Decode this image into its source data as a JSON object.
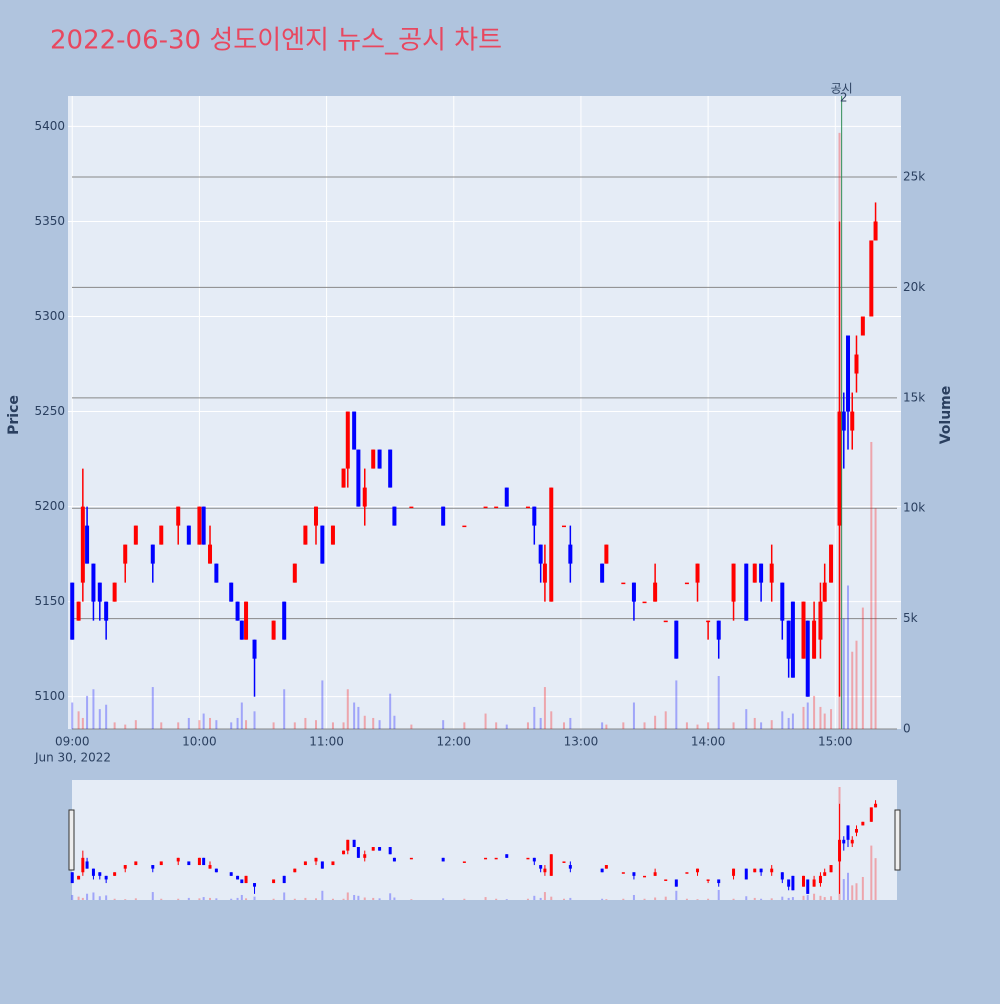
{
  "chart_data": {
    "type": "candlestick",
    "title": "2022-06-30 성도이엔지 뉴스_공시 차트",
    "y_label": "Price",
    "y2_label": "Volume",
    "date_label": "Jun 30, 2022",
    "increasing_color": "#ff0000",
    "decreasing_color": "#0000ff",
    "x": [
      "09:00",
      "09:03",
      "09:05",
      "09:07",
      "09:10",
      "09:13",
      "09:16",
      "09:20",
      "09:25",
      "09:30",
      "09:38",
      "09:42",
      "09:50",
      "09:55",
      "10:00",
      "10:02",
      "10:05",
      "10:08",
      "10:15",
      "10:18",
      "10:20",
      "10:22",
      "10:26",
      "10:35",
      "10:40",
      "10:45",
      "10:50",
      "10:55",
      "10:58",
      "11:03",
      "11:08",
      "11:10",
      "11:13",
      "11:15",
      "11:18",
      "11:22",
      "11:25",
      "11:30",
      "11:32",
      "11:40",
      "11:55",
      "12:05",
      "12:15",
      "12:20",
      "12:25",
      "12:35",
      "12:38",
      "12:41",
      "12:43",
      "12:46",
      "12:52",
      "12:55",
      "13:10",
      "13:12",
      "13:20",
      "13:25",
      "13:30",
      "13:35",
      "13:40",
      "13:45",
      "13:50",
      "13:55",
      "14:00",
      "14:05",
      "14:12",
      "14:18",
      "14:22",
      "14:25",
      "14:30",
      "14:35",
      "14:38",
      "14:40",
      "14:45",
      "14:47",
      "14:50",
      "14:53",
      "14:55",
      "14:58",
      "15:02",
      "15:04",
      "15:06",
      "15:08",
      "15:10",
      "15:13",
      "15:17",
      "15:19"
    ],
    "open": [
      5160,
      5140,
      5160,
      5190,
      5170,
      5160,
      5150,
      5150,
      5170,
      5180,
      5180,
      5180,
      5190,
      5190,
      5180,
      5200,
      5170,
      5170,
      5160,
      5150,
      5140,
      5130,
      5130,
      5130,
      5150,
      5160,
      5180,
      5190,
      5190,
      5180,
      5210,
      5220,
      5250,
      5230,
      5200,
      5220,
      5230,
      5230,
      5200,
      5200,
      5200,
      5190,
      5200,
      5200,
      5210,
      5200,
      5200,
      5180,
      5160,
      5150,
      5190,
      5180,
      5170,
      5170,
      5160,
      5160,
      5150,
      5150,
      5140,
      5140,
      5160,
      5160,
      5140,
      5140,
      5150,
      5170,
      5160,
      5170,
      5160,
      5160,
      5140,
      5150,
      5120,
      5140,
      5120,
      5130,
      5150,
      5160,
      5190,
      5250,
      5290,
      5240,
      5270,
      5290,
      5300,
      5340
    ],
    "high": [
      5160,
      5150,
      5220,
      5200,
      5170,
      5160,
      5150,
      5160,
      5180,
      5190,
      5180,
      5190,
      5200,
      5190,
      5200,
      5200,
      5190,
      5170,
      5160,
      5150,
      5140,
      5150,
      5130,
      5140,
      5150,
      5170,
      5190,
      5200,
      5190,
      5190,
      5220,
      5250,
      5250,
      5230,
      5220,
      5230,
      5230,
      5230,
      5200,
      5200,
      5200,
      5190,
      5200,
      5200,
      5210,
      5200,
      5200,
      5180,
      5180,
      5210,
      5190,
      5190,
      5170,
      5180,
      5160,
      5160,
      5150,
      5170,
      5140,
      5140,
      5160,
      5170,
      5140,
      5140,
      5170,
      5170,
      5170,
      5170,
      5180,
      5160,
      5140,
      5150,
      5150,
      5140,
      5150,
      5160,
      5170,
      5180,
      5350,
      5260,
      5290,
      5260,
      5290,
      5300,
      5340,
      5360
    ],
    "low": [
      5130,
      5140,
      5150,
      5170,
      5140,
      5140,
      5130,
      5150,
      5160,
      5180,
      5160,
      5180,
      5180,
      5180,
      5180,
      5180,
      5170,
      5160,
      5150,
      5140,
      5130,
      5130,
      5100,
      5130,
      5130,
      5160,
      5180,
      5180,
      5170,
      5180,
      5210,
      5210,
      5230,
      5200,
      5190,
      5220,
      5220,
      5210,
      5190,
      5200,
      5190,
      5190,
      5200,
      5200,
      5200,
      5200,
      5180,
      5160,
      5150,
      5150,
      5190,
      5160,
      5160,
      5170,
      5160,
      5140,
      5150,
      5150,
      5140,
      5120,
      5160,
      5150,
      5130,
      5120,
      5140,
      5140,
      5160,
      5150,
      5150,
      5130,
      5110,
      5110,
      5120,
      5100,
      5120,
      5120,
      5150,
      5160,
      5100,
      5220,
      5230,
      5230,
      5260,
      5290,
      5300,
      5340
    ],
    "close": [
      5130,
      5150,
      5200,
      5170,
      5150,
      5150,
      5140,
      5160,
      5180,
      5190,
      5170,
      5190,
      5200,
      5180,
      5200,
      5180,
      5180,
      5160,
      5150,
      5140,
      5130,
      5150,
      5120,
      5140,
      5130,
      5170,
      5190,
      5200,
      5170,
      5190,
      5220,
      5250,
      5230,
      5200,
      5210,
      5230,
      5220,
      5210,
      5190,
      5200,
      5190,
      5190,
      5200,
      5200,
      5200,
      5200,
      5190,
      5170,
      5170,
      5210,
      5190,
      5170,
      5160,
      5180,
      5160,
      5150,
      5150,
      5160,
      5140,
      5120,
      5160,
      5170,
      5140,
      5130,
      5170,
      5140,
      5170,
      5160,
      5170,
      5140,
      5120,
      5110,
      5150,
      5100,
      5140,
      5150,
      5160,
      5180,
      5250,
      5240,
      5250,
      5250,
      5280,
      5300,
      5340,
      5350
    ],
    "volume": [
      1200,
      800,
      500,
      1500,
      1800,
      900,
      1100,
      300,
      200,
      400,
      1900,
      300,
      300,
      500,
      400,
      700,
      500,
      400,
      300,
      500,
      1200,
      400,
      800,
      300,
      1800,
      300,
      500,
      400,
      2200,
      300,
      300,
      1800,
      1200,
      1000,
      600,
      500,
      400,
      1600,
      600,
      200,
      400,
      300,
      700,
      300,
      200,
      300,
      1000,
      500,
      1900,
      800,
      300,
      500,
      300,
      200,
      300,
      1200,
      300,
      600,
      800,
      2200,
      300,
      200,
      300,
      2400,
      300,
      900,
      500,
      300,
      400,
      800,
      500,
      700,
      1000,
      1200,
      1500,
      1000,
      700,
      900,
      27000,
      5000,
      6500,
      3500,
      4000,
      5500,
      13000,
      10000
    ],
    "xlim": [
      "08:58",
      "15:31"
    ],
    "xticks": [
      "09:00",
      "10:00",
      "11:00",
      "12:00",
      "13:00",
      "14:00",
      "15:00"
    ],
    "ylim": [
      5083,
      5416
    ],
    "yticks": [
      5100,
      5150,
      5200,
      5250,
      5300,
      5350,
      5400
    ],
    "y2lim": [
      0,
      28670
    ],
    "y2ticks": [
      0,
      {
        "value": 5000,
        "label": "5k"
      },
      {
        "value": 10000,
        "label": "10k"
      },
      {
        "value": 15000,
        "label": "15k"
      },
      {
        "value": 20000,
        "label": "20k"
      },
      {
        "value": 25000,
        "label": "25k"
      }
    ],
    "annotation": {
      "x": "15:03",
      "text": "공시",
      "label": "2"
    },
    "grid": true
  }
}
